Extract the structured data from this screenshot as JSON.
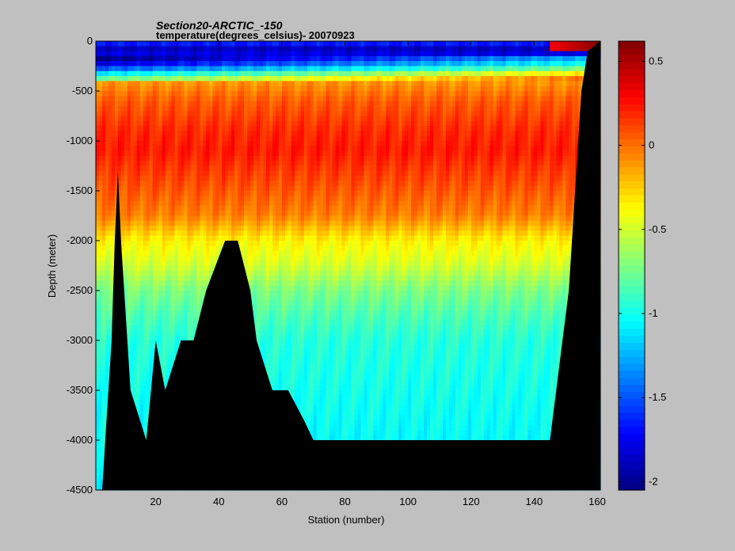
{
  "chart_data": {
    "type": "heatmap",
    "title": "Section20-ARCTIC_-150",
    "subtitle": "temperature(degrees_celsius)- 20070923",
    "xlabel": "Station (number)",
    "ylabel": "Depth (meter)",
    "xlim": [
      1,
      161
    ],
    "ylim": [
      -4500,
      0
    ],
    "xticks": [
      20,
      40,
      60,
      80,
      100,
      120,
      140,
      160
    ],
    "yticks": [
      0,
      -500,
      -1000,
      -1500,
      -2000,
      -2500,
      -3000,
      -3500,
      -4000,
      -4500
    ],
    "colorbar": {
      "lim": [
        -2.05,
        0.62
      ],
      "ticks": [
        0.5,
        0,
        -0.5,
        -1,
        -1.5,
        -2
      ],
      "colormap": "jet"
    },
    "background_color": "#c0c0c0",
    "bathymetry_color": "#000000",
    "profile": {
      "depths": [
        0,
        -30,
        -80,
        -150,
        -250,
        -320,
        -420,
        -600,
        -900,
        -1100,
        -1400,
        -1750,
        -2000,
        -2250,
        -2500,
        -2750,
        -3000,
        -3500,
        -4000,
        -4500
      ],
      "temperatures": [
        -1.45,
        -1.7,
        -1.9,
        -1.75,
        -1.3,
        -0.75,
        -0.1,
        0.05,
        0.18,
        0.22,
        0.1,
        -0.05,
        -0.35,
        -0.5,
        -0.72,
        -0.85,
        -0.95,
        -1.0,
        -1.05,
        -1.1
      ]
    },
    "bottom_depth_by_station": [
      [
        1,
        -4500
      ],
      [
        3,
        -4500
      ],
      [
        4,
        -4000
      ],
      [
        5,
        -3500
      ],
      [
        6,
        -3000
      ],
      [
        7,
        -2000
      ],
      [
        8,
        -1300
      ],
      [
        9,
        -2000
      ],
      [
        12,
        -3500
      ],
      [
        17,
        -4000
      ],
      [
        20,
        -3000
      ],
      [
        23,
        -3500
      ],
      [
        28,
        -3000
      ],
      [
        32,
        -3000
      ],
      [
        36,
        -2500
      ],
      [
        42,
        -2000
      ],
      [
        46,
        -2000
      ],
      [
        50,
        -2500
      ],
      [
        52,
        -3000
      ],
      [
        57,
        -3500
      ],
      [
        62,
        -3500
      ],
      [
        67,
        -3800
      ],
      [
        70,
        -4000
      ],
      [
        145,
        -4000
      ],
      [
        147,
        -3500
      ],
      [
        149,
        -3000
      ],
      [
        151,
        -2500
      ],
      [
        153,
        -1500
      ],
      [
        155,
        -500
      ],
      [
        157,
        -100
      ],
      [
        161,
        0
      ]
    ]
  }
}
